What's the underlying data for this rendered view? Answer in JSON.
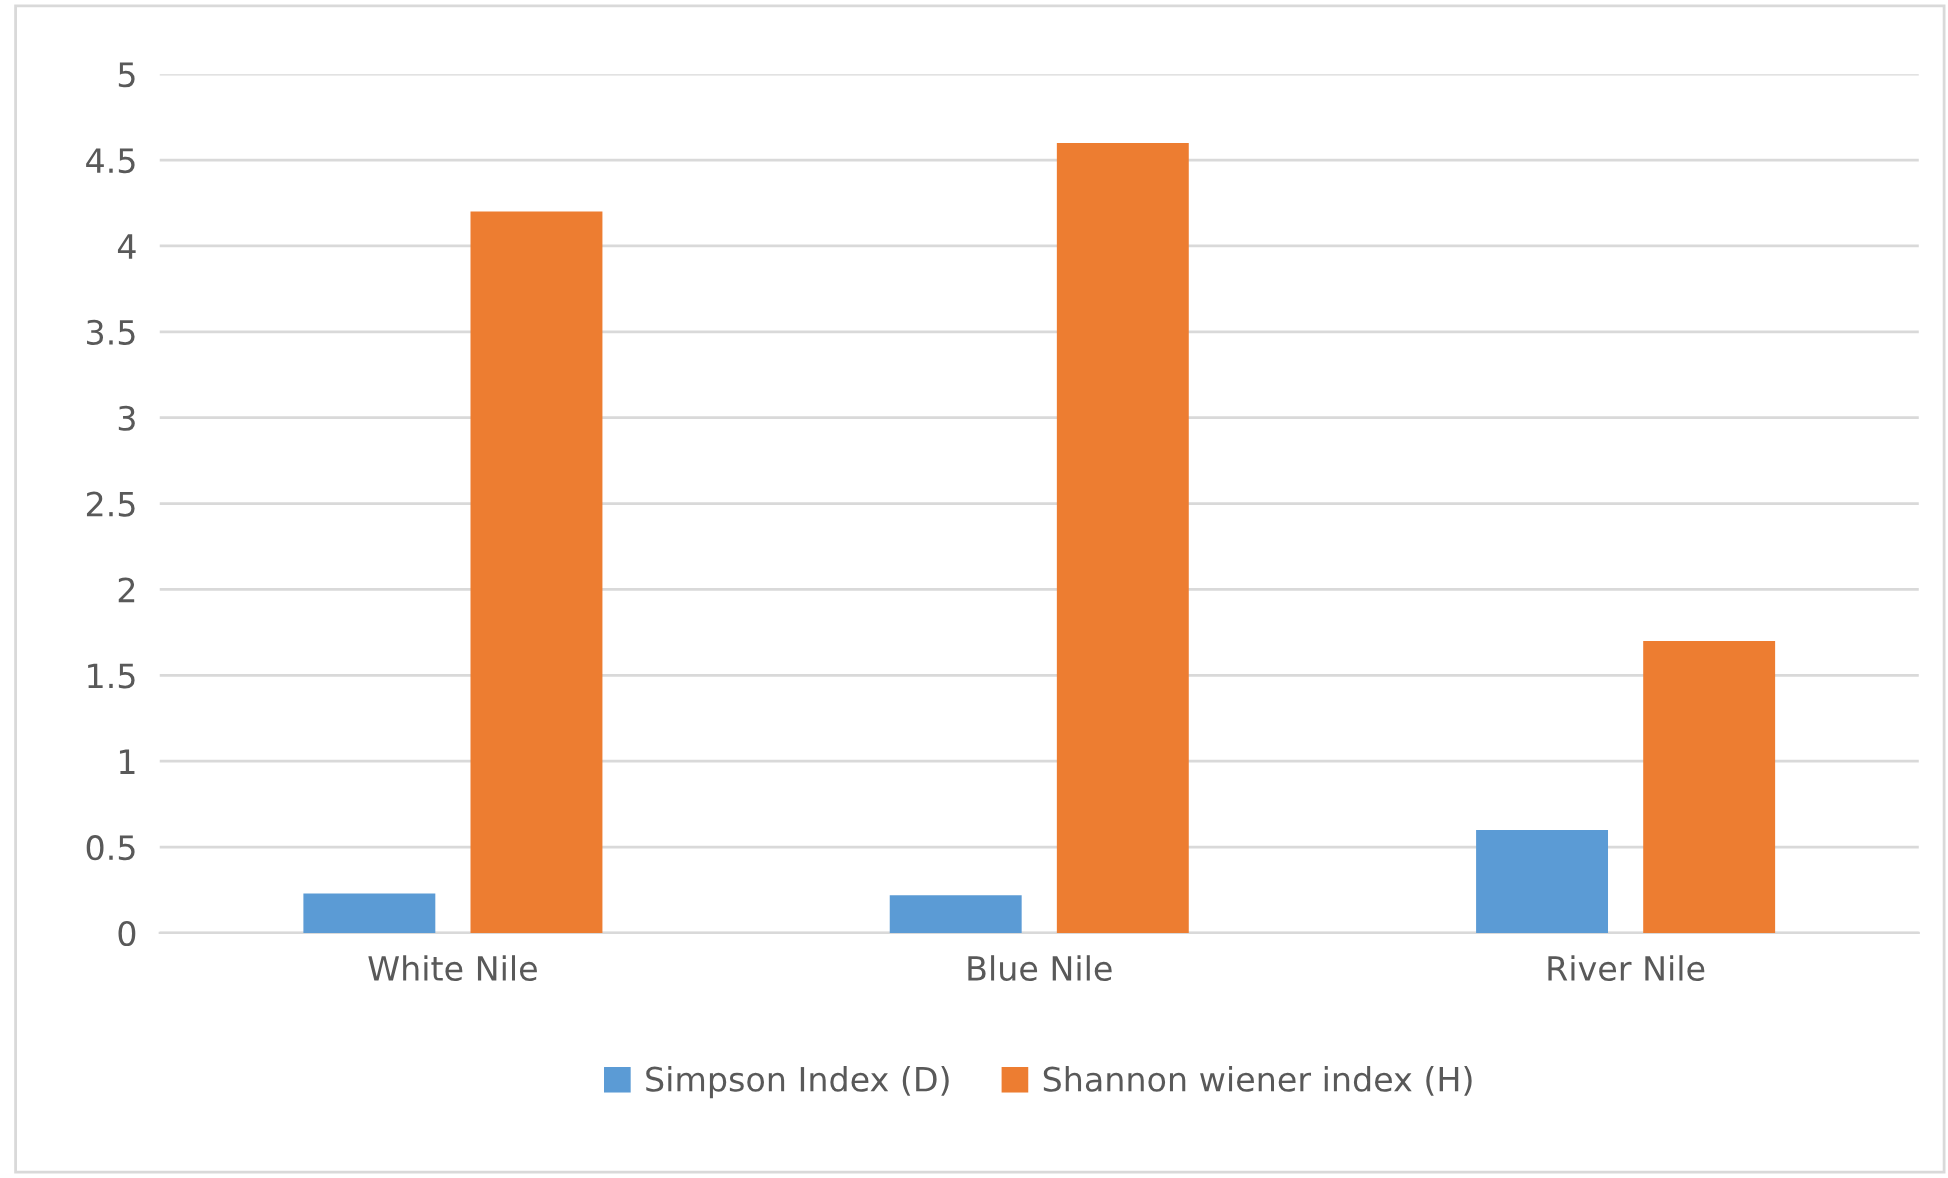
{
  "chart_data": {
    "type": "bar",
    "categories": [
      "White Nile",
      "Blue Nile",
      "River Nile"
    ],
    "series": [
      {
        "name": "Simpson Index (D)",
        "color": "#5b9bd5",
        "values": [
          0.23,
          0.22,
          0.6
        ]
      },
      {
        "name": "Shannon wiener index (H)",
        "color": "#ed7d31",
        "values": [
          4.2,
          4.6,
          1.7
        ]
      }
    ],
    "ylim": [
      0,
      5
    ],
    "yticks": [
      0,
      0.5,
      1,
      1.5,
      2,
      2.5,
      3,
      3.5,
      4,
      4.5,
      5
    ],
    "grid": "y",
    "legend": "bottom"
  }
}
